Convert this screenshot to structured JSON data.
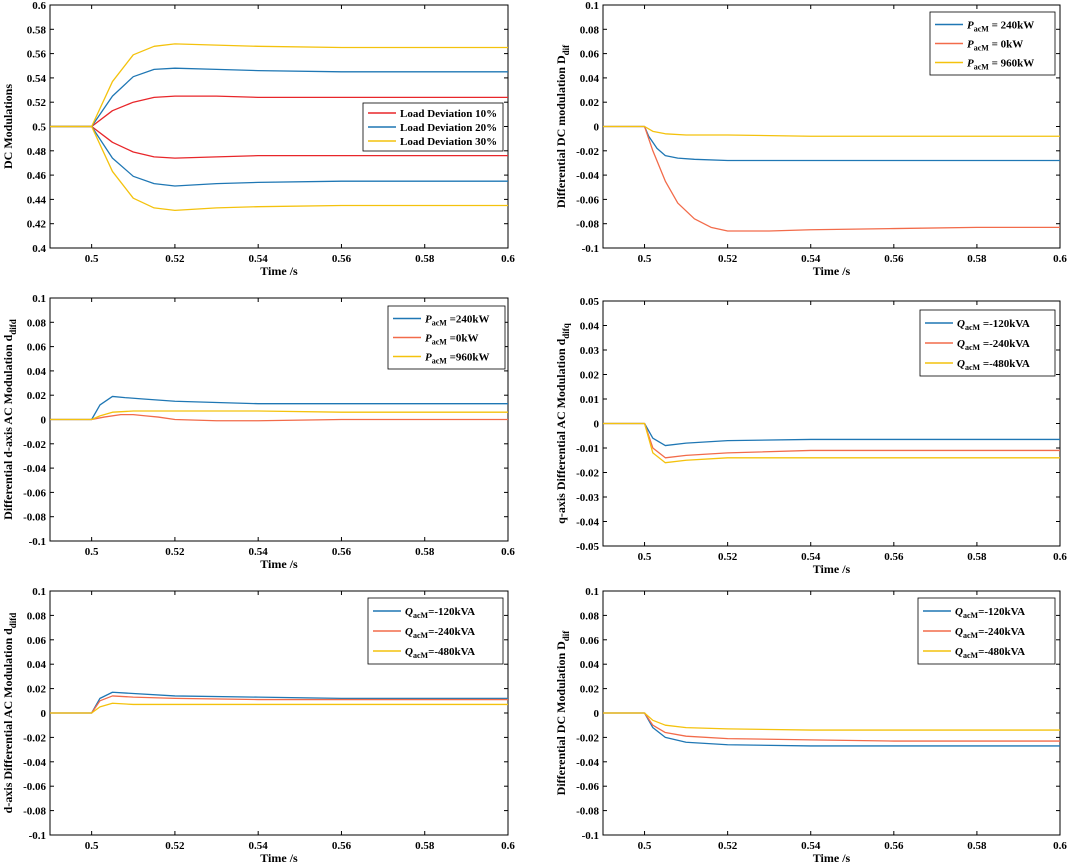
{
  "chart_data": [
    {
      "type": "line",
      "ylabel": "DC Modulations",
      "ylabel_sub": "",
      "xlabel": "Time /s",
      "xlim": [
        0.49,
        0.6
      ],
      "ylim": [
        0.4,
        0.6
      ],
      "xticks": [
        0.5,
        0.52,
        0.54,
        0.56,
        0.58,
        0.6
      ],
      "yticks": [
        0.4,
        0.42,
        0.44,
        0.46,
        0.48,
        0.5,
        0.52,
        0.54,
        0.56,
        0.58,
        0.6
      ],
      "legend_position": "middle-right",
      "legend": [
        {
          "prefix": "",
          "sub": "",
          "suffix": "Load Deviation 10%",
          "color": "#e8262a"
        },
        {
          "prefix": "",
          "sub": "",
          "suffix": "Load Deviation 20%",
          "color": "#1f77b4"
        },
        {
          "prefix": "",
          "sub": "",
          "suffix": "Load Deviation 30%",
          "color": "#f4c20d"
        }
      ],
      "series": [
        {
          "name": "Load Deviation 10% (upper)",
          "color": "#e8262a",
          "x": [
            0.49,
            0.5,
            0.505,
            0.51,
            0.515,
            0.52,
            0.53,
            0.54,
            0.56,
            0.58,
            0.6
          ],
          "y": [
            0.5,
            0.5,
            0.513,
            0.52,
            0.524,
            0.525,
            0.525,
            0.524,
            0.524,
            0.524,
            0.524
          ]
        },
        {
          "name": "Load Deviation 10% (lower)",
          "color": "#e8262a",
          "x": [
            0.49,
            0.5,
            0.505,
            0.51,
            0.515,
            0.52,
            0.53,
            0.54,
            0.56,
            0.58,
            0.6
          ],
          "y": [
            0.5,
            0.5,
            0.487,
            0.479,
            0.475,
            0.474,
            0.475,
            0.476,
            0.476,
            0.476,
            0.476
          ]
        },
        {
          "name": "Load Deviation 20% (upper)",
          "color": "#1f77b4",
          "x": [
            0.49,
            0.5,
            0.505,
            0.51,
            0.515,
            0.52,
            0.53,
            0.54,
            0.56,
            0.58,
            0.6
          ],
          "y": [
            0.5,
            0.5,
            0.525,
            0.541,
            0.547,
            0.548,
            0.547,
            0.546,
            0.545,
            0.545,
            0.545
          ]
        },
        {
          "name": "Load Deviation 20% (lower)",
          "color": "#1f77b4",
          "x": [
            0.49,
            0.5,
            0.505,
            0.51,
            0.515,
            0.52,
            0.53,
            0.54,
            0.56,
            0.58,
            0.6
          ],
          "y": [
            0.5,
            0.5,
            0.474,
            0.459,
            0.453,
            0.451,
            0.453,
            0.454,
            0.455,
            0.455,
            0.455
          ]
        },
        {
          "name": "Load Deviation 30% (upper)",
          "color": "#f4c20d",
          "x": [
            0.49,
            0.5,
            0.505,
            0.51,
            0.515,
            0.52,
            0.53,
            0.54,
            0.56,
            0.58,
            0.6
          ],
          "y": [
            0.5,
            0.5,
            0.537,
            0.559,
            0.566,
            0.568,
            0.567,
            0.566,
            0.565,
            0.565,
            0.565
          ]
        },
        {
          "name": "Load Deviation 30% (lower)",
          "color": "#f4c20d",
          "x": [
            0.49,
            0.5,
            0.505,
            0.51,
            0.515,
            0.52,
            0.53,
            0.54,
            0.56,
            0.58,
            0.6
          ],
          "y": [
            0.5,
            0.5,
            0.463,
            0.441,
            0.433,
            0.431,
            0.433,
            0.434,
            0.435,
            0.435,
            0.435
          ]
        }
      ]
    },
    {
      "type": "line",
      "ylabel": "Differential DC modulation  D",
      "ylabel_sub": "dif",
      "xlabel": "Time /s",
      "xlim": [
        0.49,
        0.6
      ],
      "ylim": [
        -0.1,
        0.1
      ],
      "xticks": [
        0.5,
        0.52,
        0.54,
        0.56,
        0.58,
        0.6
      ],
      "yticks": [
        -0.1,
        -0.08,
        -0.06,
        -0.04,
        -0.02,
        0,
        0.02,
        0.04,
        0.06,
        0.08,
        0.1
      ],
      "legend_position": "top-right",
      "legend": [
        {
          "prefix": "P",
          "sub": "acM",
          "suffix": " = 240kW",
          "color": "#1f77b4"
        },
        {
          "prefix": "P",
          "sub": "acM",
          "suffix": " = 0kW",
          "color": "#f26b4a"
        },
        {
          "prefix": "P",
          "sub": "acM",
          "suffix": " = 960kW",
          "color": "#f4c20d"
        }
      ],
      "series": [
        {
          "name": "PacM = 240kW",
          "color": "#1f77b4",
          "x": [
            0.49,
            0.5,
            0.501,
            0.503,
            0.505,
            0.508,
            0.512,
            0.52,
            0.54,
            0.56,
            0.58,
            0.6
          ],
          "y": [
            0,
            0,
            -0.008,
            -0.018,
            -0.024,
            -0.026,
            -0.027,
            -0.028,
            -0.028,
            -0.028,
            -0.028,
            -0.028
          ]
        },
        {
          "name": "PacM = 0kW",
          "color": "#f26b4a",
          "x": [
            0.49,
            0.5,
            0.502,
            0.505,
            0.508,
            0.512,
            0.516,
            0.52,
            0.53,
            0.54,
            0.56,
            0.58,
            0.6
          ],
          "y": [
            0,
            0,
            -0.02,
            -0.045,
            -0.063,
            -0.076,
            -0.083,
            -0.086,
            -0.086,
            -0.085,
            -0.084,
            -0.083,
            -0.083
          ]
        },
        {
          "name": "PacM = 960kW",
          "color": "#f4c20d",
          "x": [
            0.49,
            0.5,
            0.502,
            0.505,
            0.51,
            0.52,
            0.54,
            0.56,
            0.58,
            0.6
          ],
          "y": [
            0,
            0,
            -0.004,
            -0.006,
            -0.007,
            -0.007,
            -0.008,
            -0.008,
            -0.008,
            -0.008
          ]
        }
      ]
    },
    {
      "type": "line",
      "ylabel": "Differential d-axis AC Modulation  d",
      "ylabel_sub": "difd",
      "xlabel": "Time /s",
      "xlim": [
        0.49,
        0.6
      ],
      "ylim": [
        -0.1,
        0.1
      ],
      "xticks": [
        0.5,
        0.52,
        0.54,
        0.56,
        0.58,
        0.6
      ],
      "yticks": [
        -0.1,
        -0.08,
        -0.06,
        -0.04,
        -0.02,
        0,
        0.02,
        0.04,
        0.06,
        0.08,
        0.1
      ],
      "legend_position": "top-right",
      "legend": [
        {
          "prefix": "P",
          "sub": "acM",
          "suffix": " =240kW",
          "color": "#1f77b4"
        },
        {
          "prefix": "P",
          "sub": "acM",
          "suffix": " =0kW",
          "color": "#f26b4a"
        },
        {
          "prefix": "P",
          "sub": "acM",
          "suffix": " =960kW",
          "color": "#f4c20d"
        }
      ],
      "series": [
        {
          "name": "PacM =240kW",
          "color": "#1f77b4",
          "x": [
            0.49,
            0.5,
            0.502,
            0.505,
            0.508,
            0.512,
            0.52,
            0.53,
            0.54,
            0.56,
            0.58,
            0.6
          ],
          "y": [
            0,
            0,
            0.012,
            0.019,
            0.018,
            0.017,
            0.015,
            0.014,
            0.013,
            0.013,
            0.013,
            0.013
          ]
        },
        {
          "name": "PacM =0kW",
          "color": "#f26b4a",
          "x": [
            0.49,
            0.5,
            0.503,
            0.507,
            0.51,
            0.513,
            0.516,
            0.52,
            0.53,
            0.54,
            0.56,
            0.58,
            0.6
          ],
          "y": [
            0,
            0,
            0.002,
            0.004,
            0.004,
            0.003,
            0.002,
            0.0,
            -0.001,
            -0.001,
            0.0,
            0.0,
            0.0
          ]
        },
        {
          "name": "PacM =960kW",
          "color": "#f4c20d",
          "x": [
            0.49,
            0.5,
            0.502,
            0.505,
            0.51,
            0.52,
            0.54,
            0.56,
            0.58,
            0.6
          ],
          "y": [
            0,
            0,
            0.003,
            0.006,
            0.007,
            0.007,
            0.007,
            0.006,
            0.006,
            0.006
          ]
        }
      ]
    },
    {
      "type": "line",
      "ylabel": "q-axis Differential AC Modulation  d",
      "ylabel_sub": "difq",
      "xlabel": "Time /s",
      "xlim": [
        0.49,
        0.6
      ],
      "ylim": [
        -0.05,
        0.05
      ],
      "xticks": [
        0.5,
        0.52,
        0.54,
        0.56,
        0.58,
        0.6
      ],
      "yticks": [
        -0.05,
        -0.04,
        -0.03,
        -0.02,
        -0.01,
        0,
        0.01,
        0.02,
        0.03,
        0.04,
        0.05
      ],
      "legend_position": "top-right",
      "legend": [
        {
          "prefix": "Q",
          "sub": "acM",
          "suffix": " =-120kVA",
          "color": "#1f77b4"
        },
        {
          "prefix": "Q",
          "sub": "acM",
          "suffix": " =-240kVA",
          "color": "#f26b4a"
        },
        {
          "prefix": "Q",
          "sub": "acM",
          "suffix": " =-480kVA",
          "color": "#f4c20d"
        }
      ],
      "series": [
        {
          "name": "QacM =-120kVA",
          "color": "#1f77b4",
          "x": [
            0.49,
            0.5,
            0.502,
            0.505,
            0.51,
            0.52,
            0.54,
            0.56,
            0.58,
            0.6
          ],
          "y": [
            0,
            0,
            -0.006,
            -0.009,
            -0.008,
            -0.007,
            -0.0065,
            -0.0065,
            -0.0065,
            -0.0065
          ]
        },
        {
          "name": "QacM =-240kVA",
          "color": "#f26b4a",
          "x": [
            0.49,
            0.5,
            0.502,
            0.505,
            0.51,
            0.52,
            0.54,
            0.56,
            0.58,
            0.6
          ],
          "y": [
            0,
            0,
            -0.01,
            -0.014,
            -0.013,
            -0.012,
            -0.011,
            -0.011,
            -0.011,
            -0.011
          ]
        },
        {
          "name": "QacM =-480kVA",
          "color": "#f4c20d",
          "x": [
            0.49,
            0.5,
            0.502,
            0.505,
            0.51,
            0.52,
            0.54,
            0.56,
            0.58,
            0.6
          ],
          "y": [
            0,
            0,
            -0.012,
            -0.016,
            -0.015,
            -0.014,
            -0.014,
            -0.014,
            -0.014,
            -0.014
          ]
        }
      ]
    },
    {
      "type": "line",
      "ylabel": "d-axis Differential AC Modulation  d",
      "ylabel_sub": "difd",
      "xlabel": "Time /s",
      "xlim": [
        0.49,
        0.6
      ],
      "ylim": [
        -0.1,
        0.1
      ],
      "xticks": [
        0.5,
        0.52,
        0.54,
        0.56,
        0.58,
        0.6
      ],
      "yticks": [
        -0.1,
        -0.08,
        -0.06,
        -0.04,
        -0.02,
        0,
        0.02,
        0.04,
        0.06,
        0.08,
        0.1
      ],
      "legend_position": "top-right",
      "legend": [
        {
          "prefix": "Q",
          "sub": "acM",
          "suffix": "=-120kVA",
          "color": "#1f77b4"
        },
        {
          "prefix": "Q",
          "sub": "acM",
          "suffix": "=-240kVA",
          "color": "#f26b4a"
        },
        {
          "prefix": "Q",
          "sub": "acM",
          "suffix": "=-480kVA",
          "color": "#f4c20d"
        }
      ],
      "series": [
        {
          "name": "QacM=-120kVA",
          "color": "#1f77b4",
          "x": [
            0.49,
            0.5,
            0.502,
            0.505,
            0.51,
            0.52,
            0.54,
            0.56,
            0.58,
            0.6
          ],
          "y": [
            0,
            0,
            0.012,
            0.017,
            0.016,
            0.014,
            0.013,
            0.012,
            0.012,
            0.012
          ]
        },
        {
          "name": "QacM=-240kVA",
          "color": "#f26b4a",
          "x": [
            0.49,
            0.5,
            0.502,
            0.505,
            0.51,
            0.52,
            0.54,
            0.56,
            0.58,
            0.6
          ],
          "y": [
            0,
            0,
            0.01,
            0.014,
            0.013,
            0.012,
            0.011,
            0.011,
            0.011,
            0.011
          ]
        },
        {
          "name": "QacM=-480kVA",
          "color": "#f4c20d",
          "x": [
            0.49,
            0.5,
            0.502,
            0.505,
            0.51,
            0.52,
            0.54,
            0.56,
            0.58,
            0.6
          ],
          "y": [
            0,
            0,
            0.005,
            0.008,
            0.007,
            0.007,
            0.007,
            0.007,
            0.007,
            0.007
          ]
        }
      ]
    },
    {
      "type": "line",
      "ylabel": "Differential DC Modulation  D",
      "ylabel_sub": "dif",
      "xlabel": "Time /s",
      "xlim": [
        0.49,
        0.6
      ],
      "ylim": [
        -0.1,
        0.1
      ],
      "xticks": [
        0.5,
        0.52,
        0.54,
        0.56,
        0.58,
        0.6
      ],
      "yticks": [
        -0.1,
        -0.08,
        -0.06,
        -0.04,
        -0.02,
        0,
        0.02,
        0.04,
        0.06,
        0.08,
        0.1
      ],
      "legend_position": "top-right",
      "legend": [
        {
          "prefix": "Q",
          "sub": "acM",
          "suffix": "=-120kVA",
          "color": "#1f77b4"
        },
        {
          "prefix": "Q",
          "sub": "acM",
          "suffix": "=-240kVA",
          "color": "#f26b4a"
        },
        {
          "prefix": "Q",
          "sub": "acM",
          "suffix": "=-480kVA",
          "color": "#f4c20d"
        }
      ],
      "series": [
        {
          "name": "QacM=-120kVA",
          "color": "#1f77b4",
          "x": [
            0.49,
            0.5,
            0.502,
            0.505,
            0.51,
            0.52,
            0.54,
            0.56,
            0.58,
            0.6
          ],
          "y": [
            0,
            0,
            -0.012,
            -0.02,
            -0.024,
            -0.026,
            -0.027,
            -0.027,
            -0.027,
            -0.027
          ]
        },
        {
          "name": "QacM=-240kVA",
          "color": "#f26b4a",
          "x": [
            0.49,
            0.5,
            0.502,
            0.505,
            0.51,
            0.52,
            0.54,
            0.56,
            0.58,
            0.6
          ],
          "y": [
            0,
            0,
            -0.01,
            -0.016,
            -0.019,
            -0.021,
            -0.022,
            -0.023,
            -0.023,
            -0.023
          ]
        },
        {
          "name": "QacM=-480kVA",
          "color": "#f4c20d",
          "x": [
            0.49,
            0.5,
            0.502,
            0.505,
            0.51,
            0.52,
            0.54,
            0.56,
            0.58,
            0.6
          ],
          "y": [
            0,
            0,
            -0.006,
            -0.01,
            -0.012,
            -0.013,
            -0.014,
            -0.014,
            -0.014,
            -0.014
          ]
        }
      ]
    }
  ]
}
